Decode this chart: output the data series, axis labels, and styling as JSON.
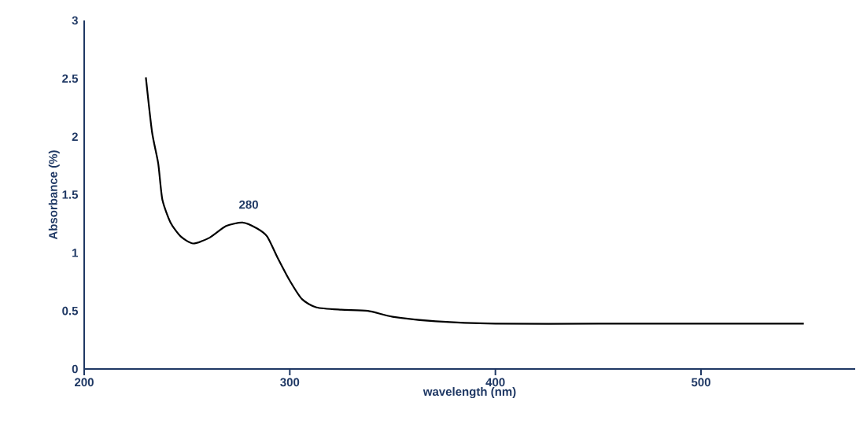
{
  "chart_data": {
    "type": "line",
    "xlabel": "wavelength (nm)",
    "ylabel": "Absorbance (%)",
    "x": [
      230,
      233,
      236,
      238,
      242,
      247,
      253,
      261,
      269,
      277,
      284,
      289,
      294,
      300,
      306,
      313,
      325,
      338,
      350,
      371,
      400,
      450,
      500,
      550
    ],
    "series": [
      {
        "color": "#000000",
        "values": [
          2.51,
          2.04,
          1.77,
          1.46,
          1.26,
          1.14,
          1.08,
          1.13,
          1.23,
          1.26,
          1.21,
          1.14,
          0.96,
          0.76,
          0.6,
          0.53,
          0.51,
          0.5,
          0.45,
          0.41,
          0.39,
          0.39,
          0.39,
          0.39
        ]
      }
    ],
    "annotations": [
      {
        "text": "280",
        "x": 280,
        "y": 1.26
      }
    ],
    "xlim": [
      200,
      575
    ],
    "ylim": [
      0,
      3
    ],
    "xticks": [
      200,
      300,
      400,
      500
    ],
    "yticks": [
      0,
      0.5,
      1,
      1.5,
      2,
      2.5,
      3
    ],
    "grid": false,
    "marker": "none",
    "line_style": "solid"
  }
}
